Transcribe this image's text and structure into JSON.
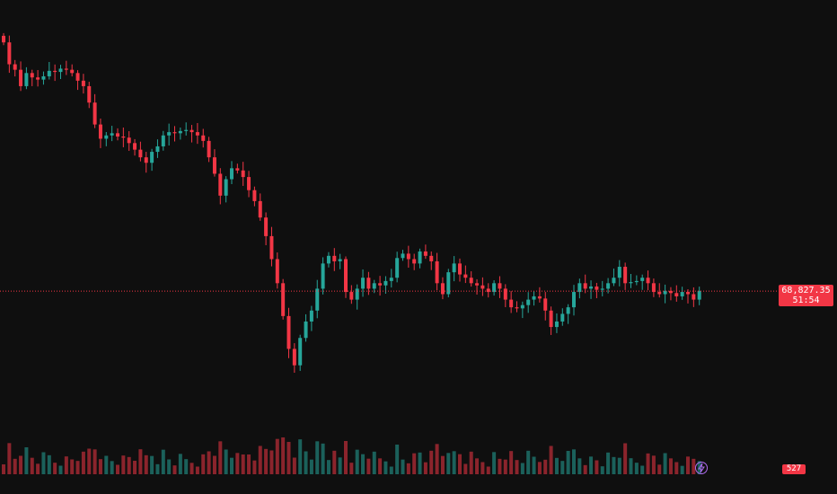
{
  "chart_data": {
    "type": "candlestick",
    "price_axis_range": [
      68000,
      71200
    ],
    "last_price": {
      "value": "68,827.35",
      "countdown": "51:54"
    },
    "last_volume": {
      "value": "527"
    },
    "colors": {
      "up": "#26a69a",
      "down": "#f23645",
      "background": "#0f0f0f",
      "price_line": "#f23645",
      "indicator": "#b06cf0"
    },
    "closes": [
      71100,
      70900,
      70850,
      70700,
      70820,
      70780,
      70760,
      70790,
      70840,
      70830,
      70860,
      70850,
      70820,
      70750,
      70700,
      70550,
      70350,
      70220,
      70250,
      70270,
      70240,
      70230,
      70180,
      70120,
      70050,
      70000,
      70100,
      70150,
      70250,
      70280,
      70270,
      70290,
      70300,
      70280,
      70250,
      70200,
      70050,
      69900,
      69700,
      69850,
      69950,
      69930,
      69870,
      69750,
      69650,
      69500,
      69330,
      69120,
      68900,
      68600,
      68300,
      68150,
      68400,
      68550,
      68650,
      68850,
      69080,
      69150,
      69100,
      69120,
      68820,
      68750,
      68850,
      68950,
      68850,
      68900,
      68880,
      68920,
      68950,
      69130,
      69170,
      69120,
      69080,
      69190,
      69150,
      69100,
      68900,
      68800,
      69000,
      69080,
      68980,
      68950,
      68900,
      68880,
      68850,
      68820,
      68900,
      68850,
      68750,
      68680,
      68670,
      68700,
      68750,
      68780,
      68760,
      68650,
      68500,
      68550,
      68620,
      68680,
      68820,
      68900,
      68850,
      68870,
      68840,
      68850,
      68900,
      68950,
      69050,
      68900,
      68910,
      68920,
      68950,
      68900,
      68820,
      68800,
      68830,
      68810,
      68780,
      68820,
      68800,
      68750,
      68830
    ]
  }
}
